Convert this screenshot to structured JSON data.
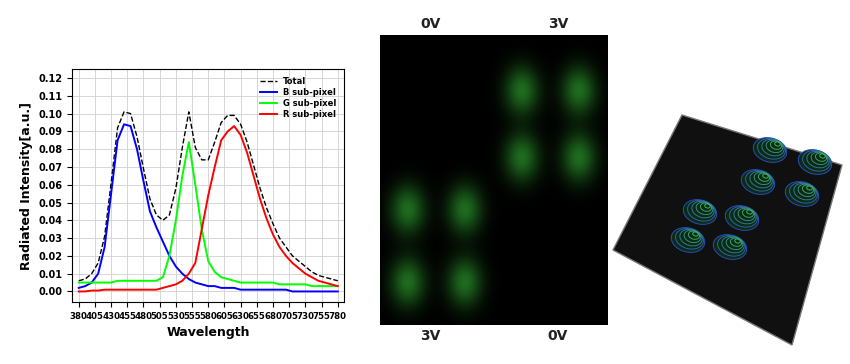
{
  "chart_data": {
    "type": "line",
    "x_label": "Wavelength",
    "y_label": "Radiated Intensity[a.u.]",
    "x": [
      380,
      390,
      400,
      410,
      420,
      430,
      440,
      450,
      460,
      470,
      480,
      490,
      500,
      510,
      520,
      530,
      540,
      550,
      560,
      570,
      580,
      590,
      600,
      610,
      620,
      630,
      640,
      650,
      660,
      670,
      680,
      690,
      700,
      710,
      720,
      730,
      740,
      750,
      760,
      770,
      780
    ],
    "series": [
      {
        "name": "Total",
        "color": "#000000",
        "line_style": "dashed",
        "values": [
          0.006,
          0.007,
          0.01,
          0.016,
          0.031,
          0.061,
          0.092,
          0.101,
          0.1,
          0.087,
          0.069,
          0.052,
          0.043,
          0.04,
          0.043,
          0.058,
          0.081,
          0.101,
          0.081,
          0.074,
          0.074,
          0.084,
          0.095,
          0.099,
          0.099,
          0.094,
          0.084,
          0.071,
          0.058,
          0.047,
          0.038,
          0.03,
          0.025,
          0.02,
          0.017,
          0.014,
          0.011,
          0.009,
          0.008,
          0.007,
          0.006
        ]
      },
      {
        "name": "B sub-pixel",
        "color": "#0000ff",
        "line_style": "solid",
        "values": [
          0.002,
          0.003,
          0.005,
          0.01,
          0.025,
          0.055,
          0.085,
          0.094,
          0.093,
          0.08,
          0.062,
          0.045,
          0.036,
          0.028,
          0.02,
          0.014,
          0.01,
          0.007,
          0.005,
          0.004,
          0.003,
          0.003,
          0.002,
          0.002,
          0.002,
          0.001,
          0.001,
          0.001,
          0.001,
          0.001,
          0.001,
          0.001,
          0.001,
          0.0,
          0.0,
          0.0,
          0.0,
          0.0,
          0.0,
          0.0,
          0.0
        ]
      },
      {
        "name": "G sub-pixel",
        "color": "#00ff00",
        "line_style": "solid",
        "values": [
          0.005,
          0.005,
          0.005,
          0.005,
          0.005,
          0.005,
          0.006,
          0.006,
          0.006,
          0.006,
          0.006,
          0.006,
          0.006,
          0.008,
          0.02,
          0.04,
          0.065,
          0.084,
          0.06,
          0.035,
          0.017,
          0.011,
          0.008,
          0.007,
          0.006,
          0.005,
          0.005,
          0.005,
          0.005,
          0.005,
          0.005,
          0.004,
          0.004,
          0.004,
          0.004,
          0.004,
          0.003,
          0.003,
          0.003,
          0.003,
          0.003
        ]
      },
      {
        "name": "R sub-pixel",
        "color": "#ff0000",
        "line_style": "solid",
        "values": [
          0.0,
          0.0,
          0.0005,
          0.0005,
          0.001,
          0.001,
          0.001,
          0.001,
          0.001,
          0.001,
          0.001,
          0.001,
          0.001,
          0.002,
          0.003,
          0.004,
          0.006,
          0.01,
          0.016,
          0.035,
          0.054,
          0.07,
          0.085,
          0.09,
          0.093,
          0.088,
          0.078,
          0.065,
          0.052,
          0.041,
          0.032,
          0.025,
          0.02,
          0.016,
          0.013,
          0.01,
          0.008,
          0.006,
          0.005,
          0.004,
          0.003
        ]
      }
    ],
    "xlim": [
      370,
      790
    ],
    "xticks": [
      380,
      405,
      430,
      455,
      480,
      505,
      530,
      555,
      580,
      605,
      630,
      655,
      680,
      705,
      730,
      755,
      780
    ],
    "ylim": [
      -0.006,
      0.125
    ],
    "yticks": [
      {
        "value": 0.0,
        "label": "0.00"
      },
      {
        "value": 0.01,
        "label": "0.01"
      },
      {
        "value": 0.02,
        "label": "0.02"
      },
      {
        "value": 0.03,
        "label": "0.03"
      },
      {
        "value": 0.04,
        "label": "0.04"
      },
      {
        "value": 0.05,
        "label": "0.05"
      },
      {
        "value": 0.06,
        "label": "0.06"
      },
      {
        "value": 0.07,
        "label": "0.07"
      },
      {
        "value": 0.08,
        "label": "0.08"
      },
      {
        "value": 0.09,
        "label": "0.09"
      },
      {
        "value": 0.1,
        "label": "0.10"
      },
      {
        "value": 0.11,
        "label": "0.11"
      },
      {
        "value": 0.12,
        "label": "0.12"
      }
    ],
    "grid": true,
    "legend": "upper right"
  },
  "voltage_labels": {
    "top": [
      "0V",
      "3V"
    ],
    "bottom": [
      "3V",
      "0V"
    ]
  }
}
